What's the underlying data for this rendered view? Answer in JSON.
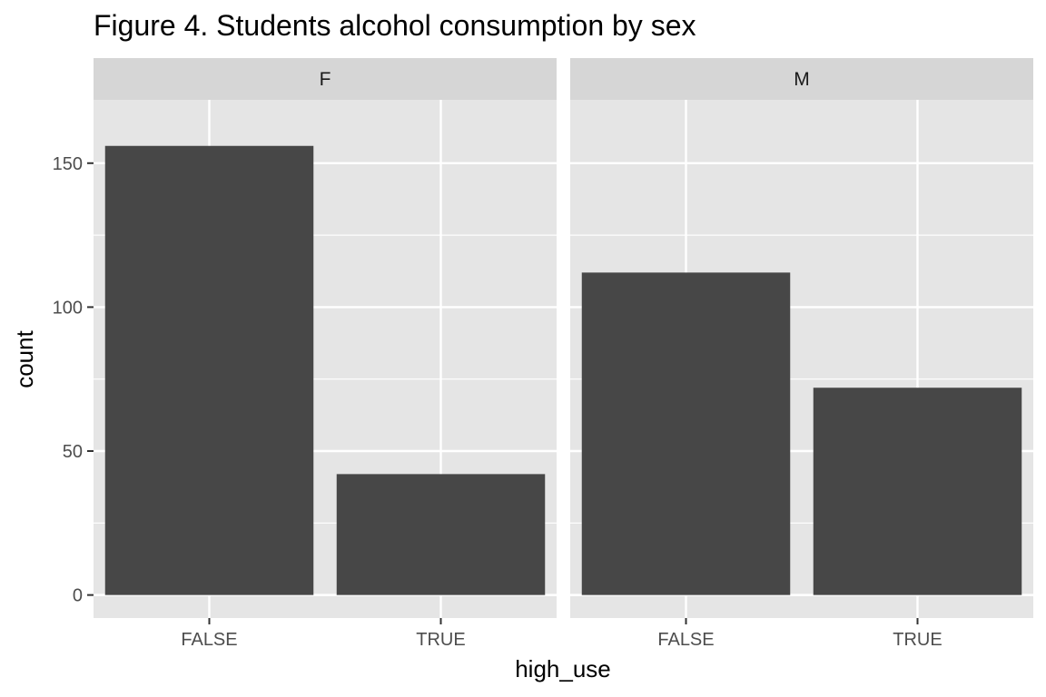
{
  "chart_data": {
    "type": "bar",
    "title": "Figure 4. Students alcohol consumption by sex",
    "xlabel": "high_use",
    "ylabel": "count",
    "categories": [
      "FALSE",
      "TRUE"
    ],
    "facets": [
      {
        "label": "F",
        "values": [
          156,
          42
        ]
      },
      {
        "label": "M",
        "values": [
          112,
          72
        ]
      }
    ],
    "ylim": [
      -8,
      172
    ],
    "yticks": [
      0,
      50,
      100,
      150
    ],
    "grid": true,
    "colors": {
      "bar": "#474747",
      "panel_bg": "#e5e5e5",
      "strip_bg": "#d6d6d6",
      "grid": "#ffffff",
      "tick": "#333333"
    }
  }
}
